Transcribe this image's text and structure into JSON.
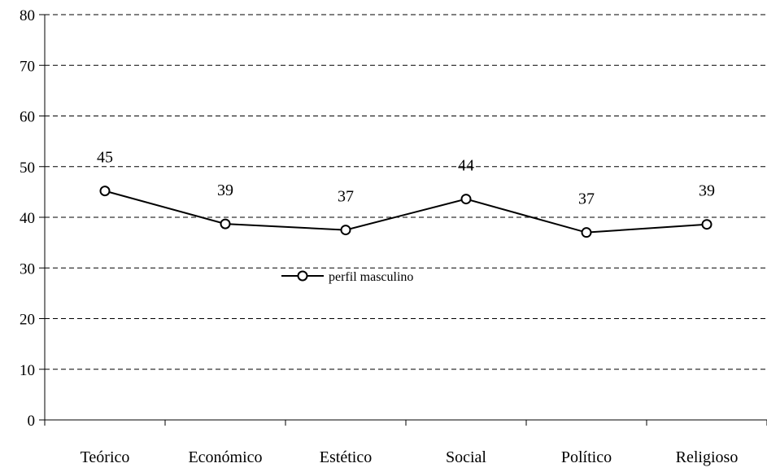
{
  "chart_data": {
    "type": "line",
    "categories": [
      "Teórico",
      "Económico",
      "Estético",
      "Social",
      "Político",
      "Religioso"
    ],
    "series": [
      {
        "name": "perfil masculino",
        "values": [
          45.2,
          38.7,
          37.5,
          43.6,
          37.0,
          38.6
        ],
        "labels": [
          "45",
          "39",
          "37",
          "44",
          "37",
          "39"
        ],
        "color": "#000000",
        "marker": "open-circle"
      }
    ],
    "ylim": [
      0,
      80
    ],
    "yticks": [
      "0",
      "10",
      "20",
      "30",
      "40",
      "50",
      "60",
      "70",
      "80"
    ],
    "grid": "dashed-horizontal",
    "legend_position": "center"
  }
}
